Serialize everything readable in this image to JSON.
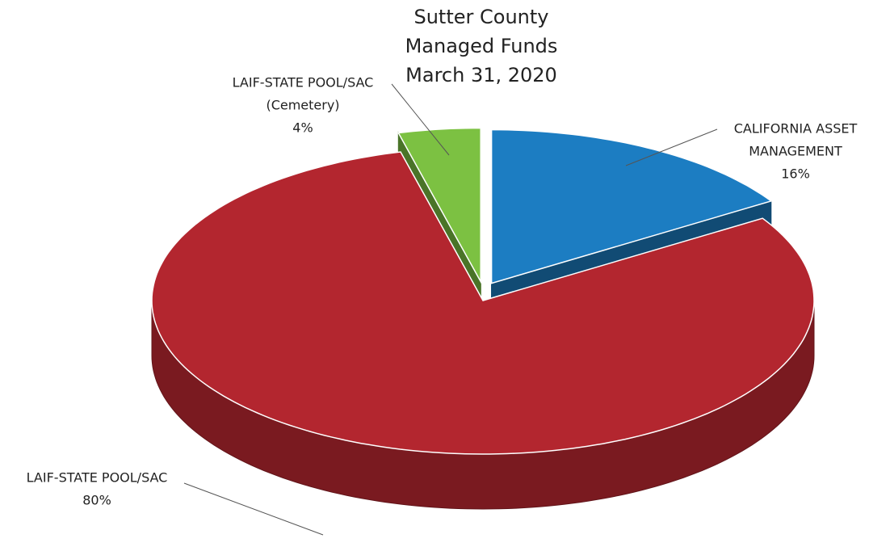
{
  "chart_data": {
    "type": "pie3d",
    "title": [
      "Sutter County",
      "Managed Funds",
      "March 31, 2020"
    ],
    "categories": [
      [
        "CALIFORNIA ASSET",
        "MANAGEMENT"
      ],
      [
        "LAIF-STATE POOL/SAC"
      ],
      [
        "LAIF-STATE POOL/SAC",
        "(Cemetery)"
      ]
    ],
    "values": [
      16,
      80,
      4
    ],
    "value_labels": [
      "16%",
      "80%",
      "4%"
    ],
    "colors": [
      "#1c7dc2",
      "#b3262f",
      "#7cc142"
    ]
  }
}
